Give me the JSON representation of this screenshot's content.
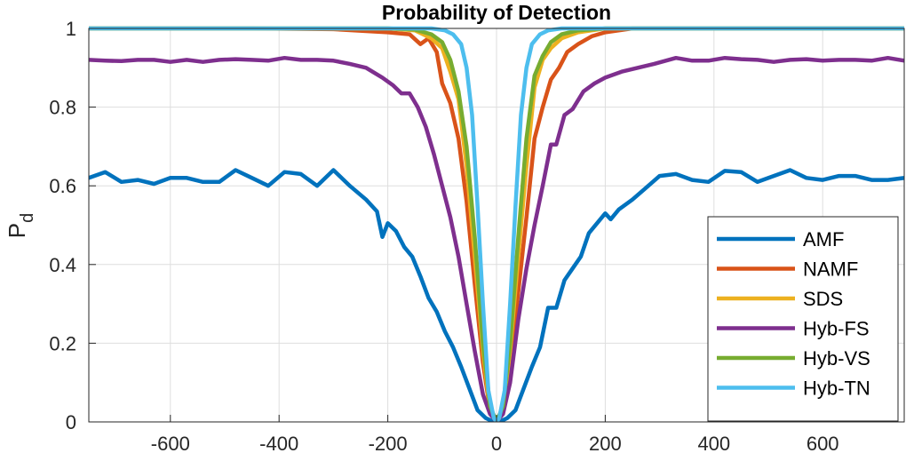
{
  "chart_data": {
    "type": "line",
    "title": "Probability of Detection",
    "ylabel": "P",
    "ylabel_subscript": "d",
    "xlabel": "",
    "xlim": [
      -750,
      750
    ],
    "ylim": [
      0,
      1
    ],
    "xticks": [
      -600,
      -400,
      -200,
      0,
      200,
      400,
      600
    ],
    "xtick_labels": [
      "-600",
      "-400",
      "-200",
      "0",
      "200",
      "400",
      "600"
    ],
    "yticks": [
      0,
      0.2,
      0.4,
      0.6,
      0.8,
      1
    ],
    "ytick_labels": [
      "0",
      "0.2",
      "0.4",
      "0.6",
      "0.8",
      "1"
    ],
    "grid": true,
    "legend_position": "bottom-right",
    "series": [
      {
        "name": "AMF",
        "color": "#0072BD",
        "points": [
          [
            -750,
            0.62
          ],
          [
            -720,
            0.635
          ],
          [
            -690,
            0.61
          ],
          [
            -660,
            0.615
          ],
          [
            -630,
            0.605
          ],
          [
            -600,
            0.62
          ],
          [
            -570,
            0.62
          ],
          [
            -540,
            0.61
          ],
          [
            -510,
            0.61
          ],
          [
            -480,
            0.64
          ],
          [
            -450,
            0.62
          ],
          [
            -420,
            0.6
          ],
          [
            -390,
            0.635
          ],
          [
            -360,
            0.63
          ],
          [
            -330,
            0.6
          ],
          [
            -300,
            0.64
          ],
          [
            -270,
            0.6
          ],
          [
            -240,
            0.565
          ],
          [
            -220,
            0.535
          ],
          [
            -210,
            0.47
          ],
          [
            -200,
            0.505
          ],
          [
            -185,
            0.485
          ],
          [
            -170,
            0.445
          ],
          [
            -155,
            0.42
          ],
          [
            -140,
            0.37
          ],
          [
            -125,
            0.315
          ],
          [
            -110,
            0.28
          ],
          [
            -95,
            0.23
          ],
          [
            -80,
            0.19
          ],
          [
            -65,
            0.14
          ],
          [
            -50,
            0.085
          ],
          [
            -35,
            0.03
          ],
          [
            -20,
            0.01
          ],
          [
            -5,
            0.0
          ],
          [
            5,
            0.0
          ],
          [
            20,
            0.01
          ],
          [
            35,
            0.03
          ],
          [
            50,
            0.085
          ],
          [
            65,
            0.14
          ],
          [
            80,
            0.19
          ],
          [
            95,
            0.29
          ],
          [
            110,
            0.29
          ],
          [
            125,
            0.36
          ],
          [
            140,
            0.39
          ],
          [
            155,
            0.42
          ],
          [
            170,
            0.48
          ],
          [
            185,
            0.505
          ],
          [
            200,
            0.53
          ],
          [
            210,
            0.515
          ],
          [
            225,
            0.54
          ],
          [
            250,
            0.565
          ],
          [
            275,
            0.595
          ],
          [
            300,
            0.625
          ],
          [
            330,
            0.63
          ],
          [
            360,
            0.615
          ],
          [
            390,
            0.61
          ],
          [
            420,
            0.638
          ],
          [
            450,
            0.635
          ],
          [
            480,
            0.61
          ],
          [
            510,
            0.625
          ],
          [
            540,
            0.64
          ],
          [
            570,
            0.62
          ],
          [
            600,
            0.615
          ],
          [
            630,
            0.625
          ],
          [
            660,
            0.625
          ],
          [
            690,
            0.615
          ],
          [
            720,
            0.615
          ],
          [
            750,
            0.62
          ]
        ]
      },
      {
        "name": "NAMF",
        "color": "#D95319",
        "points": [
          [
            -750,
            1.0
          ],
          [
            -450,
            1.0
          ],
          [
            -300,
            0.998
          ],
          [
            -200,
            0.99
          ],
          [
            -160,
            0.985
          ],
          [
            -140,
            0.96
          ],
          [
            -125,
            0.975
          ],
          [
            -110,
            0.94
          ],
          [
            -100,
            0.86
          ],
          [
            -85,
            0.81
          ],
          [
            -70,
            0.72
          ],
          [
            -55,
            0.56
          ],
          [
            -40,
            0.35
          ],
          [
            -25,
            0.15
          ],
          [
            -12,
            0.03
          ],
          [
            0,
            0.0
          ],
          [
            12,
            0.03
          ],
          [
            25,
            0.15
          ],
          [
            40,
            0.33
          ],
          [
            55,
            0.52
          ],
          [
            70,
            0.72
          ],
          [
            85,
            0.8
          ],
          [
            100,
            0.87
          ],
          [
            115,
            0.9
          ],
          [
            130,
            0.94
          ],
          [
            150,
            0.96
          ],
          [
            175,
            0.98
          ],
          [
            200,
            0.99
          ],
          [
            250,
            1.0
          ],
          [
            750,
            1.0
          ]
        ]
      },
      {
        "name": "SDS",
        "color": "#EDB120",
        "points": [
          [
            -750,
            1.0
          ],
          [
            -200,
            1.0
          ],
          [
            -150,
            0.995
          ],
          [
            -120,
            0.975
          ],
          [
            -100,
            0.95
          ],
          [
            -85,
            0.89
          ],
          [
            -70,
            0.82
          ],
          [
            -55,
            0.65
          ],
          [
            -40,
            0.42
          ],
          [
            -25,
            0.18
          ],
          [
            -12,
            0.03
          ],
          [
            0,
            0.0
          ],
          [
            12,
            0.03
          ],
          [
            25,
            0.18
          ],
          [
            40,
            0.42
          ],
          [
            55,
            0.65
          ],
          [
            70,
            0.85
          ],
          [
            85,
            0.92
          ],
          [
            100,
            0.95
          ],
          [
            120,
            0.975
          ],
          [
            150,
            0.99
          ],
          [
            200,
            1.0
          ],
          [
            750,
            1.0
          ]
        ]
      },
      {
        "name": "Hyb-FS",
        "color": "#7E2F8E",
        "points": [
          [
            -750,
            0.92
          ],
          [
            -720,
            0.918
          ],
          [
            -690,
            0.917
          ],
          [
            -660,
            0.92
          ],
          [
            -630,
            0.92
          ],
          [
            -600,
            0.915
          ],
          [
            -570,
            0.92
          ],
          [
            -540,
            0.915
          ],
          [
            -510,
            0.92
          ],
          [
            -480,
            0.922
          ],
          [
            -450,
            0.92
          ],
          [
            -420,
            0.918
          ],
          [
            -390,
            0.925
          ],
          [
            -360,
            0.92
          ],
          [
            -330,
            0.92
          ],
          [
            -300,
            0.918
          ],
          [
            -270,
            0.91
          ],
          [
            -240,
            0.9
          ],
          [
            -210,
            0.875
          ],
          [
            -190,
            0.855
          ],
          [
            -175,
            0.835
          ],
          [
            -160,
            0.835
          ],
          [
            -145,
            0.8
          ],
          [
            -130,
            0.75
          ],
          [
            -115,
            0.68
          ],
          [
            -100,
            0.6
          ],
          [
            -85,
            0.52
          ],
          [
            -70,
            0.42
          ],
          [
            -55,
            0.3
          ],
          [
            -40,
            0.18
          ],
          [
            -25,
            0.07
          ],
          [
            -12,
            0.02
          ],
          [
            0,
            0.0
          ],
          [
            12,
            0.02
          ],
          [
            25,
            0.1
          ],
          [
            40,
            0.26
          ],
          [
            55,
            0.39
          ],
          [
            70,
            0.5
          ],
          [
            85,
            0.6
          ],
          [
            100,
            0.705
          ],
          [
            110,
            0.705
          ],
          [
            125,
            0.78
          ],
          [
            140,
            0.795
          ],
          [
            160,
            0.84
          ],
          [
            180,
            0.86
          ],
          [
            200,
            0.875
          ],
          [
            230,
            0.89
          ],
          [
            260,
            0.9
          ],
          [
            290,
            0.91
          ],
          [
            330,
            0.925
          ],
          [
            360,
            0.918
          ],
          [
            390,
            0.918
          ],
          [
            420,
            0.925
          ],
          [
            450,
            0.922
          ],
          [
            480,
            0.92
          ],
          [
            510,
            0.915
          ],
          [
            540,
            0.92
          ],
          [
            570,
            0.922
          ],
          [
            600,
            0.918
          ],
          [
            630,
            0.92
          ],
          [
            660,
            0.92
          ],
          [
            690,
            0.918
          ],
          [
            720,
            0.925
          ],
          [
            750,
            0.918
          ]
        ]
      },
      {
        "name": "Hyb-VS",
        "color": "#77AC30",
        "points": [
          [
            -750,
            1.0
          ],
          [
            -200,
            1.0
          ],
          [
            -150,
            0.997
          ],
          [
            -120,
            0.985
          ],
          [
            -100,
            0.965
          ],
          [
            -85,
            0.92
          ],
          [
            -70,
            0.84
          ],
          [
            -55,
            0.7
          ],
          [
            -40,
            0.47
          ],
          [
            -25,
            0.2
          ],
          [
            -12,
            0.04
          ],
          [
            0,
            0.0
          ],
          [
            12,
            0.04
          ],
          [
            25,
            0.2
          ],
          [
            40,
            0.47
          ],
          [
            55,
            0.72
          ],
          [
            70,
            0.88
          ],
          [
            85,
            0.93
          ],
          [
            100,
            0.965
          ],
          [
            120,
            0.985
          ],
          [
            150,
            0.995
          ],
          [
            200,
            1.0
          ],
          [
            750,
            1.0
          ]
        ]
      },
      {
        "name": "Hyb-TN",
        "color": "#4DBEEE",
        "points": [
          [
            -750,
            1.0
          ],
          [
            -120,
            1.0
          ],
          [
            -95,
            0.995
          ],
          [
            -80,
            0.985
          ],
          [
            -65,
            0.96
          ],
          [
            -55,
            0.9
          ],
          [
            -45,
            0.78
          ],
          [
            -35,
            0.55
          ],
          [
            -25,
            0.3
          ],
          [
            -15,
            0.08
          ],
          [
            -5,
            0.01
          ],
          [
            0,
            0.0
          ],
          [
            5,
            0.01
          ],
          [
            15,
            0.08
          ],
          [
            25,
            0.3
          ],
          [
            35,
            0.55
          ],
          [
            45,
            0.78
          ],
          [
            55,
            0.9
          ],
          [
            65,
            0.96
          ],
          [
            80,
            0.985
          ],
          [
            95,
            0.995
          ],
          [
            120,
            1.0
          ],
          [
            750,
            1.0
          ]
        ]
      }
    ]
  }
}
